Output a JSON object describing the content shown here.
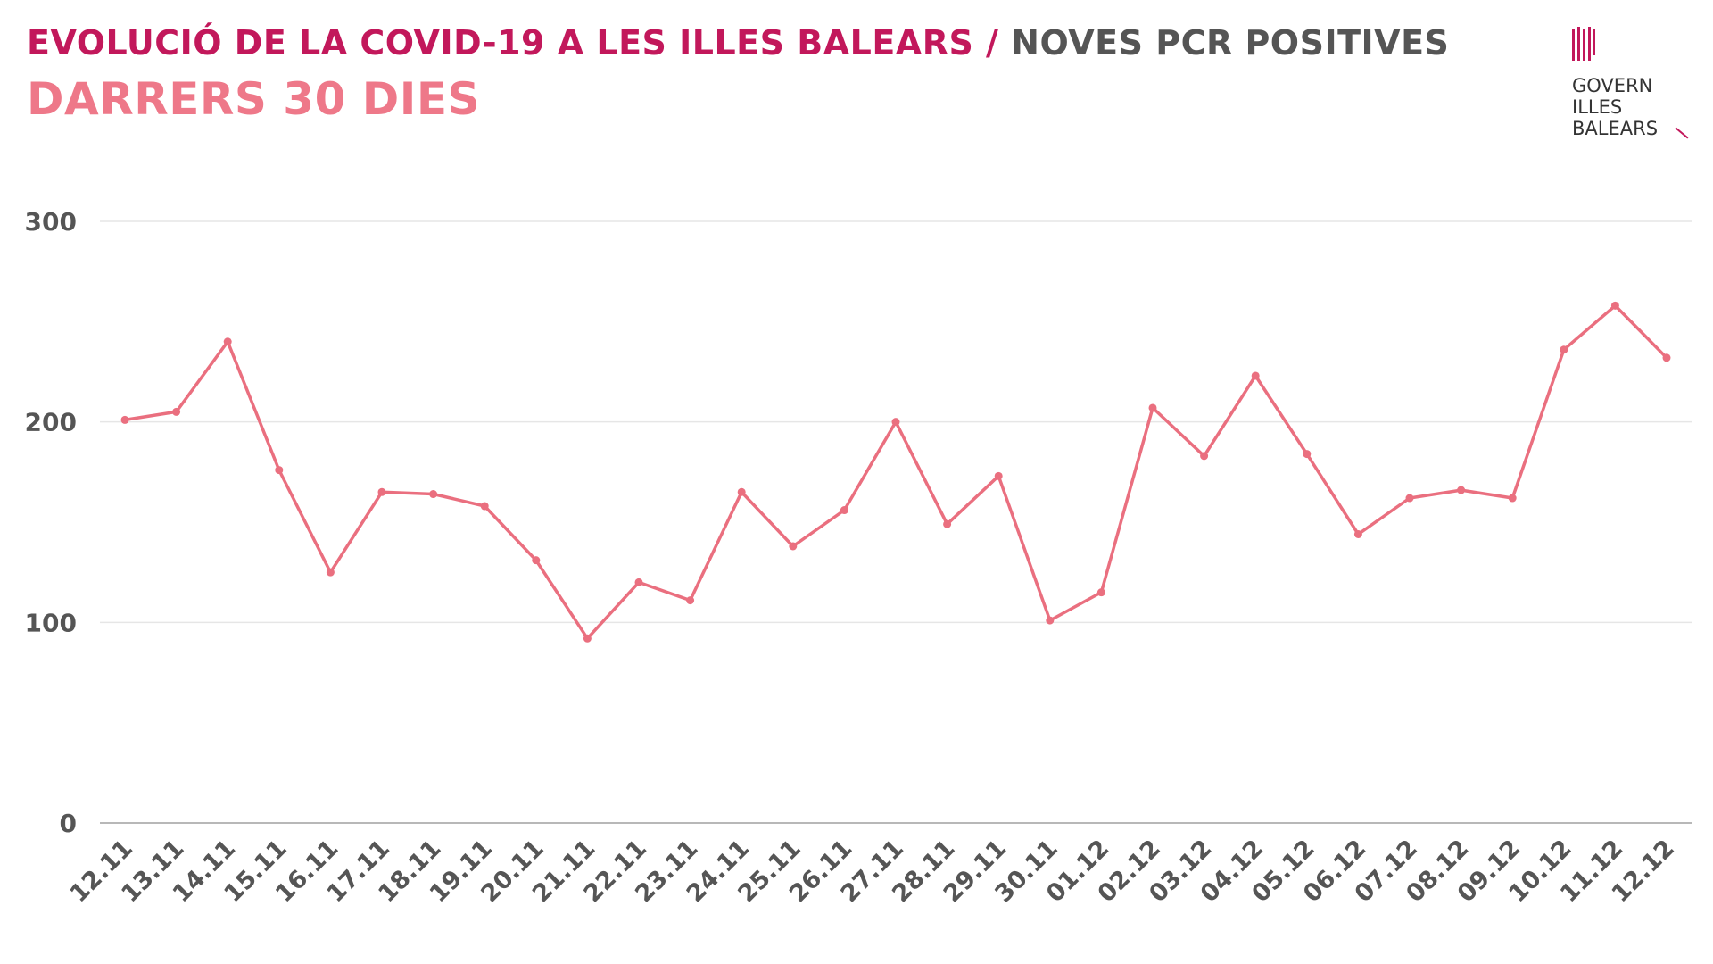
{
  "header": {
    "title_part1": "EVOLUCIÓ DE LA COVID-19 A LES ILLES BALEARS",
    "title_sep": " / ",
    "title_part2": "NOVES PCR POSITIVES",
    "subtitle": "DARRERS 30 DIES"
  },
  "logo": {
    "line1": "GOVERN",
    "line2": "ILLES",
    "line3": "BALEARS",
    "icon": "govern-illes-balears-emblem"
  },
  "colors": {
    "title_accent": "#c2185b",
    "title_gray": "#555555",
    "subtitle": "#ee7889",
    "line": "#ea6f7f",
    "grid": "#e6e6e6",
    "axis": "#b8b8b8"
  },
  "chart_data": {
    "type": "line",
    "title": "EVOLUCIÓ DE LA COVID-19 A LES ILLES BALEARS / NOVES PCR POSITIVES",
    "subtitle": "DARRERS 30 DIES",
    "xlabel": "",
    "ylabel": "",
    "ylim": [
      0,
      300
    ],
    "yticks": [
      0,
      100,
      200,
      300
    ],
    "grid": true,
    "legend": "none",
    "categories": [
      "12.11",
      "13.11",
      "14.11",
      "15.11",
      "16.11",
      "17.11",
      "18.11",
      "19.11",
      "20.11",
      "21.11",
      "22.11",
      "23.11",
      "24.11",
      "25.11",
      "26.11",
      "27.11",
      "28.11",
      "29.11",
      "30.11",
      "01.12",
      "02.12",
      "03.12",
      "04.12",
      "05.12",
      "06.12",
      "07.12",
      "08.12",
      "09.12",
      "10.12",
      "11.12",
      "12.12"
    ],
    "series": [
      {
        "values": [
          201,
          205,
          240,
          176,
          125,
          165,
          164,
          158,
          131,
          92,
          120,
          111,
          165,
          138,
          156,
          200,
          149,
          173,
          101,
          115,
          207,
          183,
          223,
          184,
          144,
          162,
          166,
          162,
          236,
          258,
          232
        ]
      }
    ]
  }
}
